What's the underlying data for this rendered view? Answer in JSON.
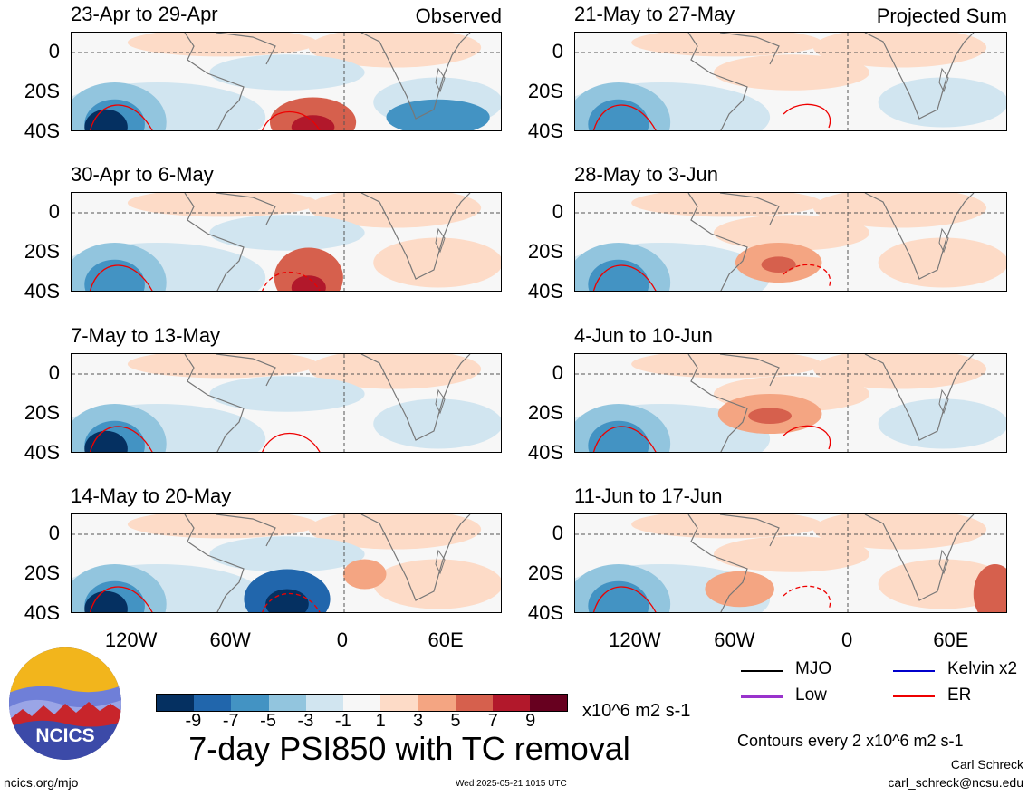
{
  "panels_left": [
    {
      "title": "23-Apr to 29-Apr",
      "tag": "Observed"
    },
    {
      "title": "30-Apr to 6-May",
      "tag": ""
    },
    {
      "title": "7-May to 13-May",
      "tag": ""
    },
    {
      "title": "14-May to 20-May",
      "tag": ""
    }
  ],
  "panels_right": [
    {
      "title": "21-May to 27-May",
      "tag": "Projected Sum"
    },
    {
      "title": "28-May to 3-Jun",
      "tag": ""
    },
    {
      "title": "4-Jun to 10-Jun",
      "tag": ""
    },
    {
      "title": "11-Jun to 17-Jun",
      "tag": ""
    }
  ],
  "y_ticks": [
    "0",
    "20S",
    "40S"
  ],
  "x_ticks": [
    "120W",
    "60W",
    "0",
    "60E"
  ],
  "colorbar": {
    "labels": [
      "-9",
      "-7",
      "-5",
      "-3",
      "-1",
      "1",
      "3",
      "5",
      "7",
      "9"
    ],
    "colors": [
      "#053061",
      "#2166ac",
      "#4393c3",
      "#92c5de",
      "#d1e5f0",
      "#f7f7f7",
      "#fddbc7",
      "#f4a582",
      "#d6604d",
      "#b2182b",
      "#67001f"
    ],
    "units": "x10^6 m2 s-1"
  },
  "main_title": "7-day PSI850 with TC removal",
  "legend": [
    {
      "label": "MJO",
      "color": "#000000"
    },
    {
      "label": "Kelvin x2",
      "color": "#0000cc"
    },
    {
      "label": "Low",
      "color": "#9933cc"
    },
    {
      "label": "ER",
      "color": "#ee0000"
    }
  ],
  "contour_note": "Contours every 2 x10^6 m2 s-1",
  "author": "Carl Schreck",
  "email": "carl_schreck@ncsu.edu",
  "site": "ncics.org/mjo",
  "timestamp": "Wed 2025-05-21 1015 UTC",
  "logo_text": "NCICS"
}
